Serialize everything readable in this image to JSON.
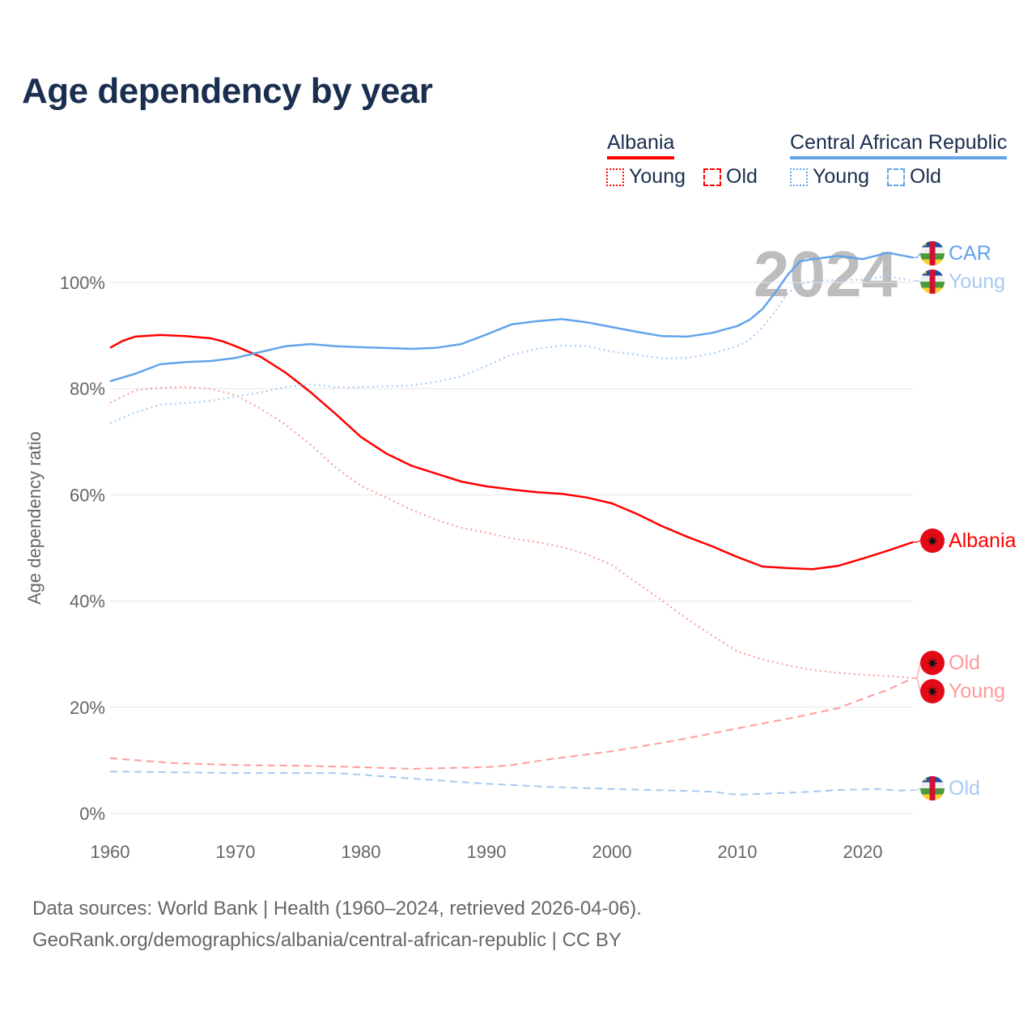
{
  "title": "Age dependency by year",
  "legend": {
    "countries": [
      {
        "name": "Albania",
        "color": "#ff0000",
        "young": "Young",
        "old": "Old"
      },
      {
        "name": "Central African Republic",
        "color": "#62a4ea",
        "young": "Young",
        "old": "Old"
      }
    ]
  },
  "footer": {
    "line1": "Data sources: World Bank | Health (1960–2024, retrieved 2026-04-06).",
    "line2": "GeoRank.org/demographics/albania/central-african-republic | CC BY"
  },
  "chart_data": {
    "type": "line",
    "title": "Age dependency by year",
    "xlabel": "",
    "ylabel": "Age dependency ratio",
    "xlim": [
      1960,
      2024
    ],
    "ylim": [
      0,
      110
    ],
    "xticks": [
      1960,
      1970,
      1980,
      1990,
      2000,
      2010,
      2020
    ],
    "yticks": [
      0,
      20,
      40,
      60,
      80,
      100
    ],
    "ytick_labels": [
      "0%",
      "20%",
      "40%",
      "60%",
      "80%",
      "100%"
    ],
    "year_watermark": "2024",
    "grid": true,
    "legend_position": "top-right",
    "series": [
      {
        "name": "Albania",
        "label": "Albania",
        "style": "solid",
        "color": "#ff0000",
        "flag": "albania",
        "x": [
          1960,
          1961,
          1962,
          1964,
          1966,
          1968,
          1969,
          1970,
          1972,
          1974,
          1976,
          1978,
          1980,
          1982,
          1984,
          1986,
          1988,
          1990,
          1992,
          1994,
          1996,
          1998,
          2000,
          2002,
          2004,
          2006,
          2008,
          2010,
          2012,
          2014,
          2016,
          2018,
          2020,
          2022,
          2024
        ],
        "y": [
          87.7,
          89,
          89.8,
          90.1,
          89.9,
          89.5,
          88.9,
          88,
          86,
          83,
          79.3,
          75.2,
          70.9,
          67.8,
          65.5,
          64,
          62.5,
          61.6,
          61,
          60.5,
          60.2,
          59.5,
          58.4,
          56.4,
          54.1,
          52.1,
          50.3,
          48.3,
          46.5,
          46.2,
          46,
          46.6,
          48,
          49.5,
          51.1
        ]
      },
      {
        "name": "Albania Young",
        "label": "Young",
        "style": "dotted",
        "color": "#ff9a9a",
        "flag": "albania",
        "x": [
          1960,
          1962,
          1964,
          1966,
          1968,
          1970,
          1972,
          1974,
          1976,
          1978,
          1980,
          1982,
          1984,
          1986,
          1988,
          1990,
          1992,
          1994,
          1996,
          1998,
          2000,
          2002,
          2004,
          2006,
          2008,
          2010,
          2012,
          2014,
          2016,
          2018,
          2020,
          2022,
          2024
        ],
        "y": [
          77.3,
          79.7,
          80.2,
          80.3,
          80,
          78.8,
          76.2,
          73.2,
          69.4,
          65.1,
          61.7,
          59.5,
          57.2,
          55.3,
          53.8,
          52.9,
          51.8,
          51.1,
          50.2,
          48.8,
          46.8,
          43.4,
          40.1,
          36.6,
          33.5,
          30.5,
          29,
          27.9,
          27,
          26.5,
          26.1,
          25.9,
          25.5
        ]
      },
      {
        "name": "Albania Old",
        "label": "Old",
        "style": "dashed",
        "color": "#ff9a9a",
        "flag": "albania",
        "x": [
          1960,
          1965,
          1970,
          1975,
          1980,
          1984,
          1990,
          1992,
          1995,
          2000,
          2005,
          2010,
          2015,
          2018,
          2020,
          2022,
          2024
        ],
        "y": [
          10.4,
          9.5,
          9.1,
          9,
          8.7,
          8.4,
          8.7,
          9.1,
          10.2,
          11.7,
          13.7,
          16,
          18.3,
          19.8,
          21.6,
          23.3,
          25.5
        ]
      },
      {
        "name": "CAR",
        "label": "CAR",
        "style": "solid",
        "color": "#62a4ea",
        "flag": "car",
        "x": [
          1960,
          1962,
          1964,
          1966,
          1968,
          1970,
          1972,
          1974,
          1976,
          1978,
          1980,
          1984,
          1986,
          1988,
          1990,
          1992,
          1994,
          1996,
          1998,
          2000,
          2002,
          2004,
          2006,
          2008,
          2010,
          2011,
          2012,
          2013,
          2014,
          2015,
          2016,
          2018,
          2020,
          2022,
          2024
        ],
        "y": [
          81.4,
          82.8,
          84.6,
          85,
          85.2,
          85.8,
          86.9,
          88,
          88.4,
          88,
          87.8,
          87.5,
          87.7,
          88.4,
          90.2,
          92.1,
          92.7,
          93.1,
          92.5,
          91.6,
          90.7,
          89.9,
          89.8,
          90.5,
          91.8,
          93,
          95,
          98,
          101.4,
          104,
          104.4,
          105,
          104.4,
          105.6,
          104.7
        ]
      },
      {
        "name": "CAR Young",
        "label": "Young",
        "style": "dotted",
        "color": "#a6caf1",
        "flag": "car",
        "x": [
          1960,
          1962,
          1964,
          1966,
          1968,
          1970,
          1972,
          1974,
          1976,
          1978,
          1980,
          1984,
          1986,
          1988,
          1990,
          1992,
          1994,
          1996,
          1998,
          2000,
          2002,
          2004,
          2006,
          2008,
          2010,
          2011,
          2012,
          2013,
          2014,
          2015,
          2016,
          2018,
          2020,
          2022,
          2024
        ],
        "y": [
          73.5,
          75.5,
          77,
          77.3,
          77.7,
          78.5,
          79.3,
          80.3,
          80.8,
          80.3,
          80.3,
          80.6,
          81.3,
          82.3,
          84.3,
          86.4,
          87.5,
          88.1,
          88,
          87,
          86.4,
          85.7,
          85.8,
          86.6,
          88,
          89.2,
          91.5,
          94.5,
          98,
          99.7,
          100.2,
          100.5,
          100.5,
          101.2,
          100.3
        ]
      },
      {
        "name": "CAR Old",
        "label": "Old",
        "style": "dashed",
        "color": "#a6caf1",
        "flag": "car",
        "x": [
          1960,
          1970,
          1978,
          1980,
          1985,
          1990,
          1995,
          2000,
          2005,
          2008,
          2010,
          2015,
          2018,
          2021,
          2023,
          2024
        ],
        "y": [
          7.9,
          7.6,
          7.6,
          7.3,
          6.4,
          5.6,
          5,
          4.6,
          4.3,
          4.1,
          3.5,
          4,
          4.4,
          4.6,
          4.3,
          4.4
        ]
      }
    ]
  }
}
